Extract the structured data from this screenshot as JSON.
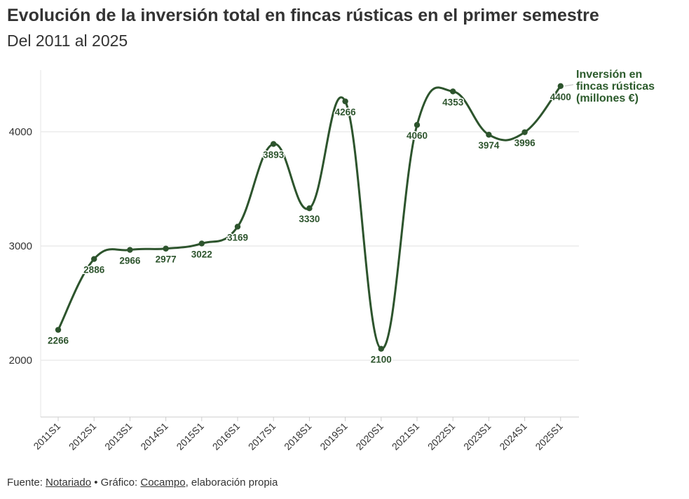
{
  "header": {
    "title": "Evolución de la inversión total en fincas rústicas en el primer semestre",
    "subtitle": "Del 2011 al 2025"
  },
  "footer": {
    "source_prefix": "Fuente: ",
    "source_link": "Notariado",
    "separator": " • Gráfico: ",
    "chart_link": "Cocampo",
    "suffix": ", elaboración propia"
  },
  "colors": {
    "series": "#2d542d",
    "label": "#2b5a2b",
    "grid": "#e8e8e8",
    "axis": "#cccccc",
    "text": "#333333"
  },
  "chart_data": {
    "type": "line",
    "title": "Evolución de la inversión total en fincas rústicas en el primer semestre",
    "subtitle": "Del 2011 al 2025",
    "xlabel": "",
    "ylabel": "",
    "ylim": [
      1500,
      4500
    ],
    "yticks": [
      2000,
      3000,
      4000
    ],
    "grid": true,
    "categories": [
      "2011S1",
      "2012S1",
      "2013S1",
      "2014S1",
      "2015S1",
      "2016S1",
      "2017S1",
      "2018S1",
      "2019S1",
      "2020S1",
      "2021S1",
      "2022S1",
      "2023S1",
      "2024S1",
      "2025S1"
    ],
    "series": [
      {
        "name": "Inversión en fincas rústicas (millones €)",
        "name_lines": [
          "Inversión en",
          "fincas rústicas",
          "(millones €)"
        ],
        "values": [
          2266,
          2886,
          2966,
          2977,
          3022,
          3169,
          3893,
          3330,
          4266,
          2100,
          4060,
          4353,
          3974,
          3996,
          4400
        ]
      }
    ]
  }
}
